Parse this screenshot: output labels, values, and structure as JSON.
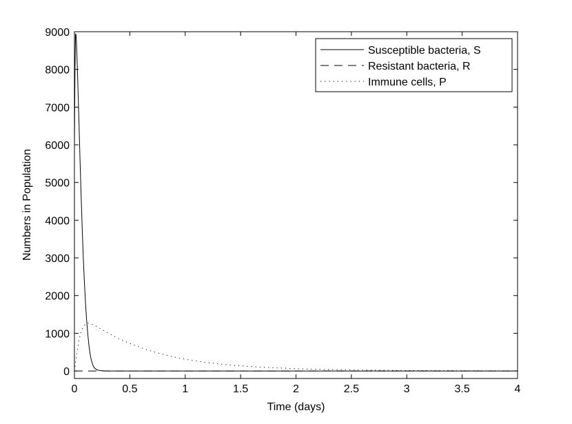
{
  "chart_data": {
    "type": "line",
    "title": "",
    "xlabel": "Time (days)",
    "ylabel": "Numbers in Population",
    "xlim": [
      0,
      4
    ],
    "ylim": [
      -200,
      9000
    ],
    "xticks": [
      0,
      0.5,
      1,
      1.5,
      2,
      2.5,
      3,
      3.5,
      4
    ],
    "xtick_labels": [
      "0",
      "0.5",
      "1",
      "1.5",
      "2",
      "2.5",
      "3",
      "3.5",
      "4"
    ],
    "yticks": [
      0,
      1000,
      2000,
      3000,
      4000,
      5000,
      6000,
      7000,
      8000,
      9000
    ],
    "ytick_labels": [
      "0",
      "1000",
      "2000",
      "3000",
      "4000",
      "5000",
      "6000",
      "7000",
      "8000",
      "9000"
    ],
    "grid": false,
    "legend_position": "top-right",
    "series": [
      {
        "name": "Susceptible bacteria, S",
        "style": "solid",
        "color": "#000000",
        "x": [
          0,
          0.005,
          0.01,
          0.015,
          0.02,
          0.03,
          0.04,
          0.05,
          0.06,
          0.07,
          0.08,
          0.09,
          0.1,
          0.11,
          0.12,
          0.13,
          0.14,
          0.15,
          0.16,
          0.17,
          0.18,
          0.2,
          0.22,
          0.25,
          0.3,
          0.5,
          1,
          2,
          3,
          4
        ],
        "y": [
          6000,
          8000,
          8950,
          8900,
          8600,
          7700,
          6700,
          5650,
          4700,
          3800,
          3000,
          2350,
          1800,
          1350,
          1000,
          700,
          480,
          320,
          210,
          130,
          80,
          35,
          15,
          5,
          0,
          0,
          0,
          0,
          0,
          0
        ]
      },
      {
        "name": "Resistant bacteria, R",
        "style": "dashed",
        "color": "#000000",
        "x": [
          0,
          0.05,
          0.1,
          0.2,
          0.5,
          1,
          2,
          3,
          4
        ],
        "y": [
          0,
          0,
          0,
          0,
          0,
          0,
          0,
          0,
          0
        ]
      },
      {
        "name": "Immune cells, P",
        "style": "dotted",
        "color": "#000000",
        "x": [
          0,
          0.02,
          0.04,
          0.06,
          0.08,
          0.1,
          0.12,
          0.15,
          0.2,
          0.3,
          0.4,
          0.5,
          0.6,
          0.7,
          0.8,
          0.9,
          1.0,
          1.2,
          1.4,
          1.6,
          1.8,
          2.0,
          2.2,
          2.4,
          2.6,
          2.8,
          3.0,
          3.2,
          3.4,
          3.6,
          3.8,
          4.0
        ],
        "y": [
          0,
          450,
          800,
          1050,
          1180,
          1240,
          1270,
          1250,
          1180,
          1010,
          860,
          730,
          620,
          520,
          440,
          370,
          310,
          220,
          160,
          115,
          85,
          60,
          45,
          32,
          23,
          17,
          12,
          9,
          7,
          5,
          4,
          3
        ]
      }
    ]
  }
}
